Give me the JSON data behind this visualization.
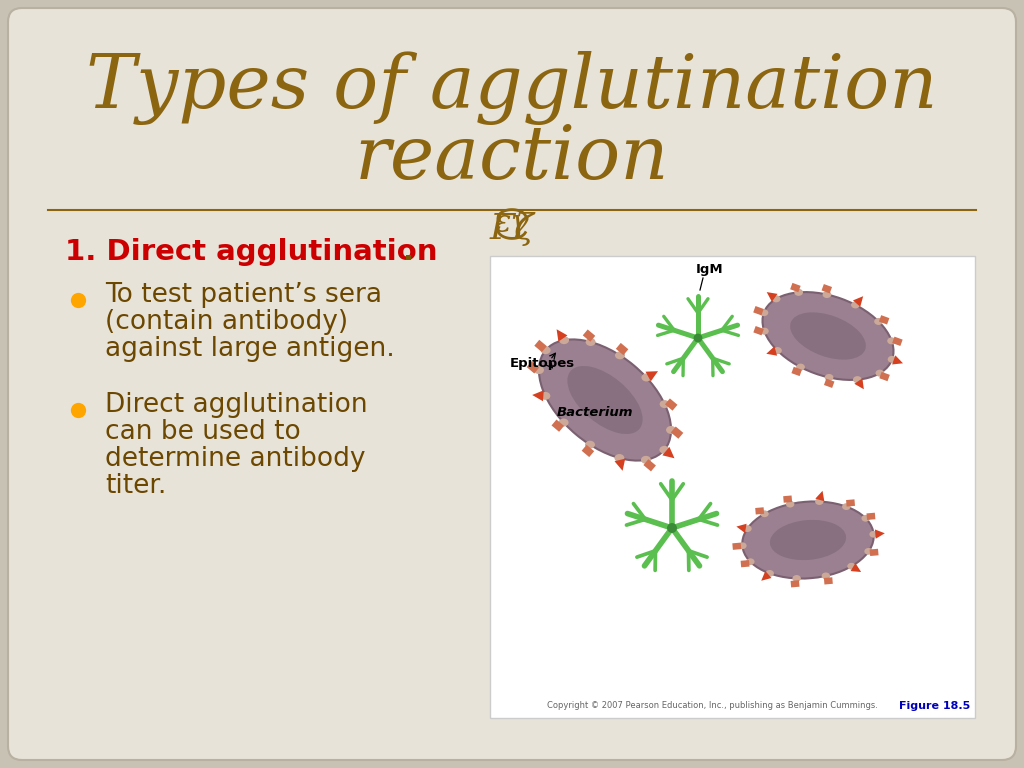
{
  "title_line1": "Types of agglutination",
  "title_line2": "reaction",
  "title_color": "#8B6510",
  "bg_color": "#E8E3D8",
  "slide_bg": "#C8C2B4",
  "heading": "1. Direct agglutination",
  "heading_color": "#CC0000",
  "dot_color": "#7A5800",
  "bullet_color": "#FFA500",
  "text_color": "#6B4700",
  "bullet1_lines": [
    "To test patient’s sera",
    "(contain antibody)",
    "against large antigen."
  ],
  "bullet2_lines": [
    "Direct agglutination",
    "can be used to",
    "determine antibody",
    "titer."
  ],
  "divider_color": "#8B6510",
  "curl_color": "#8B6510",
  "figure_caption": "Figure 18.5",
  "figure_caption_color": "#0000BB",
  "copyright_text": "Copyright © 2007 Pearson Education, Inc., publishing as Benjamin Cummings.",
  "copyright_color": "#666666",
  "bacterium_body": "#9A8090",
  "bacterium_inner": "#887080",
  "bacterium_edge": "#7A6070",
  "spike_red": "#D44020",
  "spike_orange": "#D07050",
  "nub_color": "#CCA898",
  "igm_green": "#5BBF50",
  "igm_dark": "#3A8A38",
  "white": "#FFFFFF",
  "black": "#000000"
}
